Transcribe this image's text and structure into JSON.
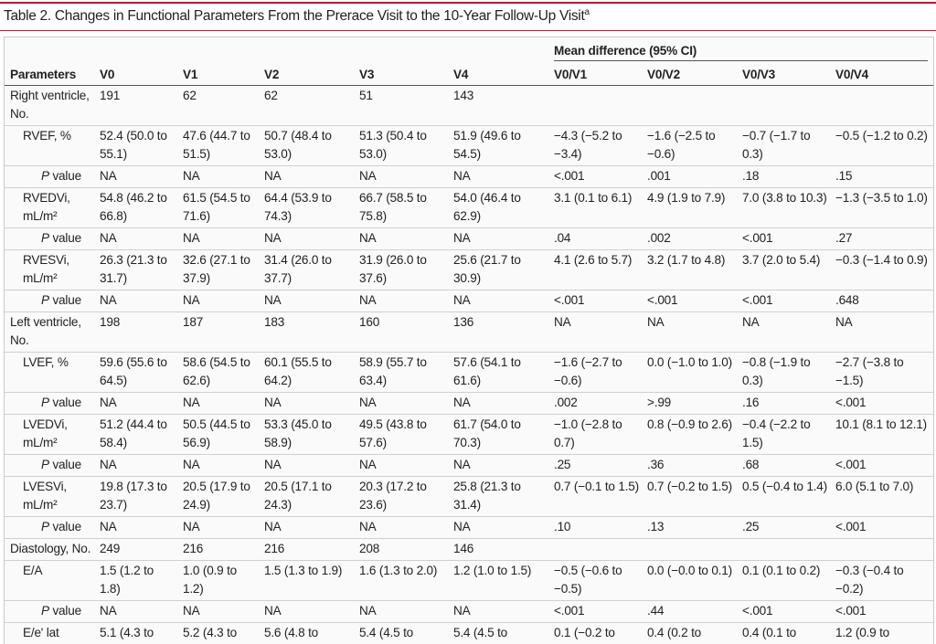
{
  "header": {
    "title": "Table 2. Changes in Functional Parameters From the Prerace Visit to the 10-Year Follow-Up Visit",
    "title_note": "a"
  },
  "table": {
    "group_header": "Mean difference (95% CI)",
    "columns": [
      "Parameters",
      "V0",
      "V1",
      "V2",
      "V3",
      "V4",
      "V0/V1",
      "V0/V2",
      "V0/V3",
      "V0/V4"
    ],
    "groups": [
      {
        "label": "Right ventricle, No.",
        "cells": [
          191,
          62,
          62,
          51,
          143
        ],
        "measures": [
          {
            "label": "RVEF, %",
            "cells": [
              "52.4 (50.0 to 55.1)",
              "47.6 (44.7 to 51.5)",
              "50.7 (48.4 to 53.0)",
              "51.3 (50.4 to 53.0)",
              "51.9 (49.6 to 54.5)",
              "−4.3 (−5.2 to −3.4)",
              "−1.6 (−2.5 to −0.6)",
              "−0.7 (−1.7 to 0.3)",
              "−0.5 (−1.2 to 0.2)"
            ],
            "p_value": {
              "label_italic": "P",
              "label": "value",
              "cells": [
                "NA",
                "NA",
                "NA",
                "NA",
                "NA",
                "<.001",
                ".001",
                ".18",
                ".15"
              ]
            }
          },
          {
            "label": "RVEDVi, mL/m²",
            "cells": [
              "54.8 (46.2 to 66.8)",
              "61.5 (54.5 to 71.6)",
              "64.4 (53.9 to 74.3)",
              "66.7 (58.5 to 75.8)",
              "54.0 (46.4 to 62.9)",
              "3.1 (0.1 to 6.1)",
              "4.9 (1.9 to 7.9)",
              "7.0 (3.8 to 10.3)",
              "−1.3 (−3.5 to 1.0)"
            ],
            "p_value": {
              "label_italic": "P",
              "label": "value",
              "cells": [
                "NA",
                "NA",
                "NA",
                "NA",
                "NA",
                ".04",
                ".002",
                "<.001",
                ".27"
              ]
            }
          },
          {
            "label": "RVESVi, mL/m²",
            "cells": [
              "26.3 (21.3 to 31.7)",
              "32.6 (27.1 to 37.9)",
              "31.4 (26.0 to 37.7)",
              "31.9 (26.0 to 37.6)",
              "25.6 (21.7 to 30.9)",
              "4.1 (2.6 to 5.7)",
              "3.2 (1.7 to 4.8)",
              "3.7 (2.0 to 5.4)",
              "−0.3 (−1.4 to 0.9)"
            ],
            "p_value": {
              "label_italic": "P",
              "label": "value",
              "cells": [
                "NA",
                "NA",
                "NA",
                "NA",
                "NA",
                "<.001",
                "<.001",
                "<.001",
                ".648"
              ]
            }
          }
        ]
      },
      {
        "label": "Left ventricle, No.",
        "cells": [
          198,
          187,
          183,
          160,
          136,
          "NA",
          "NA",
          "NA",
          "NA"
        ],
        "measures": [
          {
            "label": "LVEF, %",
            "cells": [
              "59.6 (55.6 to 64.5)",
              "58.6 (54.5 to 62.6)",
              "60.1 (55.5 to 64.2)",
              "58.9 (55.7 to 63.4)",
              "57.6 (54.1 to 61.6)",
              "−1.6 (−2.7 to −0.6)",
              "0.0 (−1.0 to 1.0)",
              "−0.8 (−1.9 to 0.3)",
              "−2.7 (−3.8 to −1.5)"
            ],
            "p_value": {
              "label_italic": "P",
              "label": "value",
              "cells": [
                "NA",
                "NA",
                "NA",
                "NA",
                "NA",
                ".002",
                ">.99",
                ".16",
                "<.001"
              ]
            }
          },
          {
            "label": "LVEDVi, mL/m²",
            "cells": [
              "51.2 (44.4 to 58.4)",
              "50.5 (44.5 to 56.9)",
              "53.3 (45.0 to 58.9)",
              "49.5 (43.8 to 57.6)",
              "61.7 (54.0 to 70.3)",
              "−1.0 (−2.8 to 0.7)",
              "0.8 (−0.9 to 2.6)",
              "−0.4 (−2.2 to 1.5)",
              "10.1 (8.1 to 12.1)"
            ],
            "p_value": {
              "label_italic": "P",
              "label": "value",
              "cells": [
                "NA",
                "NA",
                "NA",
                "NA",
                "NA",
                ".25",
                ".36",
                ".68",
                "<.001"
              ]
            }
          },
          {
            "label": "LVESVi, mL/m²",
            "cells": [
              "19.8 (17.3 to 23.7)",
              "20.5 (17.9 to 24.9)",
              "20.5 (17.1 to 24.3)",
              "20.3 (17.2 to 23.6)",
              "25.8 (21.3 to 31.4)",
              "0.7 (−0.1 to 1.5)",
              "0.7 (−0.2 to 1.5)",
              "0.5 (−0.4 to 1.4)",
              "6.0 (5.1 to 7.0)"
            ],
            "p_value": {
              "label_italic": "P",
              "label": "value",
              "cells": [
                "NA",
                "NA",
                "NA",
                "NA",
                "NA",
                ".10",
                ".13",
                ".25",
                "<.001"
              ]
            }
          }
        ]
      },
      {
        "label": "Diastology, No.",
        "cells": [
          249,
          216,
          216,
          208,
          146
        ],
        "measures": [
          {
            "label": "E/A",
            "cells": [
              "1.5 (1.2 to 1.8)",
              "1.0 (0.9 to 1.2)",
              "1.5 (1.3 to 1.9)",
              "1.6 (1.3 to 2.0)",
              "1.2 (1.0 to 1.5)",
              "−0.5 (−0.6 to −0.5)",
              "0.0 (−0.0 to 0.1)",
              "0.1 (0.1 to 0.2)",
              "−0.3 (−0.4 to −0.2)"
            ],
            "p_value": {
              "label_italic": "P",
              "label": "value",
              "cells": [
                "NA",
                "NA",
                "NA",
                "NA",
                "NA",
                "<.001",
                ".44",
                "<.001",
                "<.001"
              ]
            }
          },
          {
            "label": "E/e' lat",
            "cells": [
              "5.1 (4.3 to",
              "5.2 (4.3 to",
              "5.6 (4.8 to",
              "5.4 (4.5 to",
              "5.4 (4.5 to",
              "0.1 (−0.2 to",
              "0.4 (0.2 to",
              "0.4 (0.1 to",
              "1.2 (0.9 to"
            ]
          }
        ]
      }
    ]
  }
}
